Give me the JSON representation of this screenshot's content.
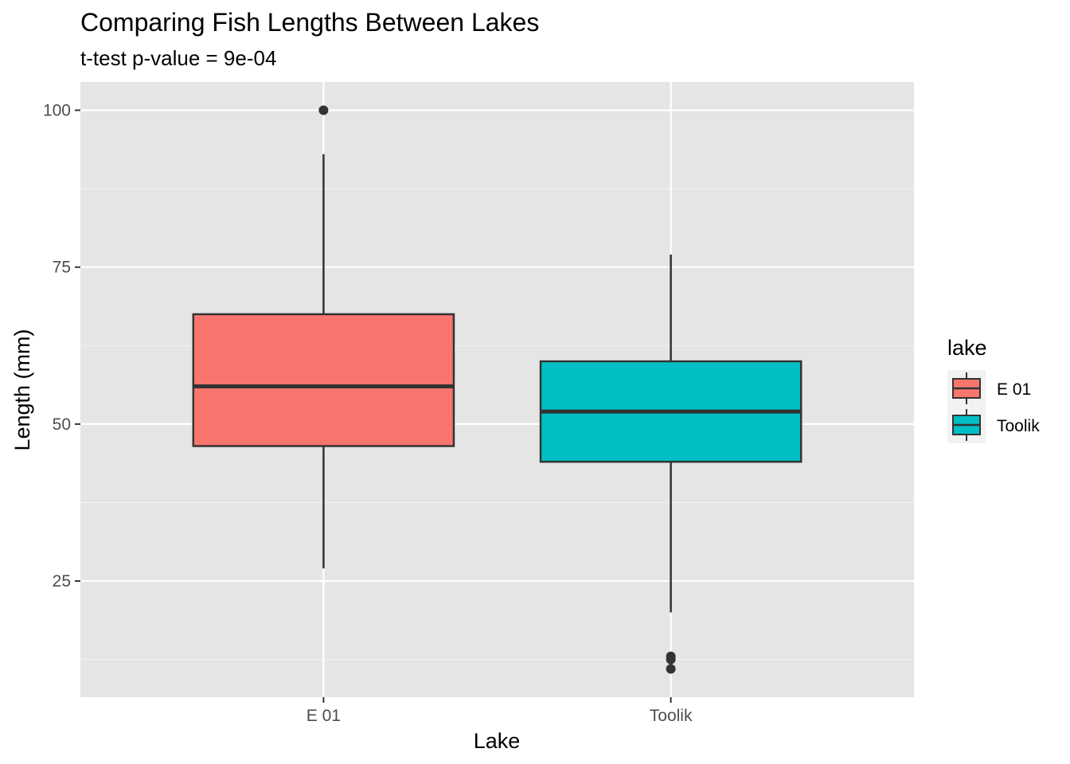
{
  "chart_data": {
    "type": "boxplot",
    "title": "Comparing Fish Lengths Between Lakes",
    "subtitle": "t-test p-value = 9e-04",
    "xlabel": "Lake",
    "ylabel": "Length (mm)",
    "ylim": [
      6.5,
      104.5
    ],
    "y_ticks": [
      25,
      50,
      75,
      100
    ],
    "y_tick_labels": [
      "25",
      "50",
      "75",
      "100"
    ],
    "categories": [
      "E 01",
      "Toolik"
    ],
    "boxes": [
      {
        "category": "E 01",
        "whisker_low": 27,
        "q1": 46.5,
        "median": 56,
        "q3": 67.5,
        "whisker_high": 93,
        "outliers": [
          100
        ],
        "color": "#F8766D"
      },
      {
        "category": "Toolik",
        "whisker_low": 20,
        "q1": 44,
        "median": 52,
        "q3": 60,
        "whisker_high": 77,
        "outliers": [
          13,
          12.5,
          11
        ],
        "color": "#00BFC4"
      }
    ],
    "legend": {
      "title": "lake",
      "position": "right",
      "entries": [
        {
          "label": "E 01",
          "color": "#F8766D"
        },
        {
          "label": "Toolik",
          "color": "#00BFC4"
        }
      ]
    },
    "grid": true,
    "panel_background": "#E5E5E5"
  }
}
